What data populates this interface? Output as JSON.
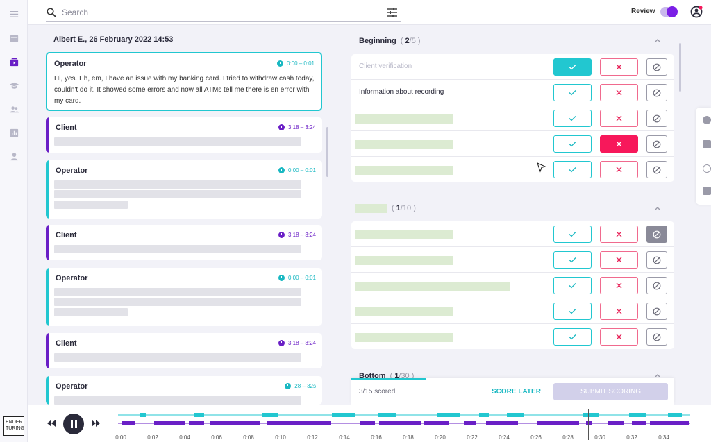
{
  "search": {
    "placeholder": "Search"
  },
  "header": {
    "review_label": "Review",
    "review_on": true
  },
  "brand": {
    "logo_line1": "ENDER",
    "logo_line2": "TURING"
  },
  "transcript": {
    "title": "Albert E., 26 February 2022 14:53",
    "messages": [
      {
        "role": "Operator",
        "time": "0:00 – 0:01",
        "text": "Hi, yes. Eh, em, I have an issue with my banking card. I tried to withdraw cash today, couldn't do it. It showed some errors and now all ATMs tell me there is en error with my card."
      },
      {
        "role": "Client",
        "time": "3:18 – 3:24"
      },
      {
        "role": "Operator",
        "time": "0:00 – 0:01"
      },
      {
        "role": "Client",
        "time": "3:18 – 3:24"
      },
      {
        "role": "Operator",
        "time": "0:00 – 0:01"
      },
      {
        "role": "Client",
        "time": "3:18 – 3:24"
      },
      {
        "role": "Operator",
        "time": "28 – 32s"
      }
    ]
  },
  "scoring": {
    "sections": [
      {
        "title": "Beginning",
        "count_done": "2",
        "count_total": "5",
        "rows": [
          {
            "label": "Client verification",
            "state": "ok"
          },
          {
            "label": "Information about recording",
            "state": "none"
          },
          {
            "label": "",
            "state": "none"
          },
          {
            "label": "",
            "state": "no"
          },
          {
            "label": "",
            "state": "none"
          }
        ]
      },
      {
        "title": "",
        "count_done": "1",
        "count_total": "10",
        "rows": [
          {
            "label": "",
            "state": "na"
          },
          {
            "label": "",
            "state": "none"
          },
          {
            "label": "",
            "state": "none"
          },
          {
            "label": "",
            "state": "none"
          },
          {
            "label": "",
            "state": "none"
          }
        ]
      },
      {
        "title": "Bottom",
        "count_done": "1",
        "count_total": "30"
      }
    ],
    "footer": {
      "scored": "3/15 scored",
      "score_later": "SCORE LATER",
      "submit": "SUBMIT SCORING",
      "progress": 0.2
    }
  },
  "player": {
    "ticks": [
      "0:00",
      "0:02",
      "0:04",
      "0:06",
      "0:08",
      "0:10",
      "0:12",
      "0:14",
      "0:16",
      "0:18",
      "0:20",
      "0:22",
      "0:24",
      "0:26",
      "0:28",
      "0:30",
      "0:32",
      "0:34"
    ],
    "colors": {
      "operator": "#22c7d0",
      "client": "#6a1fc6"
    }
  },
  "colors": {
    "accent": "#22c7d0",
    "client": "#6a1fc6",
    "reject": "#f7185b",
    "toggle": "#7b1fe6"
  }
}
